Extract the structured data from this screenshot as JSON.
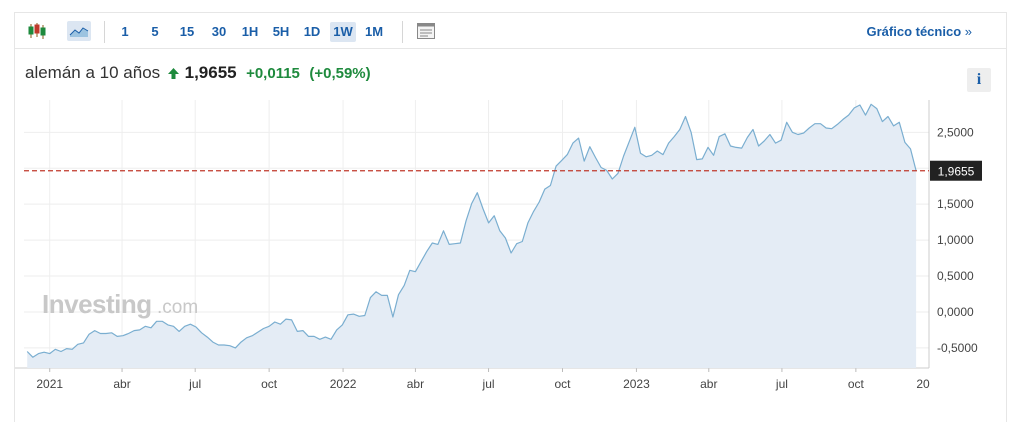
{
  "toolbar": {
    "candles_icon": "candlestick-icon",
    "area_icon": "area-chart-icon",
    "timeframes": [
      "1",
      "5",
      "15",
      "30",
      "1H",
      "5H",
      "1D",
      "1W",
      "1M"
    ],
    "active_timeframe": "1W",
    "layout_icon": "layout-icon",
    "tech_link": "Gráfico técnico",
    "tech_link_arrow": "»"
  },
  "header": {
    "name": "alemán a 10 años",
    "price": "1,9655",
    "change": "+0,0115",
    "change_pct": "(+0,59%)",
    "info_label": "i"
  },
  "watermark": {
    "brand": "Investing",
    "suffix": ".com"
  },
  "colors": {
    "line": "#7aaed0",
    "fill": "#e4ecf5",
    "reference": "#c0392b",
    "positive": "#1e8a3d",
    "link": "#1a5ea8",
    "label_bg": "#222222"
  },
  "chart_data": {
    "type": "area",
    "title": "alemán a 10 años",
    "xlabel": "",
    "ylabel": "",
    "x_ticks": [
      "2021",
      "abr",
      "jul",
      "oct",
      "2022",
      "abr",
      "jul",
      "oct",
      "2023",
      "abr",
      "jul",
      "oct",
      "20"
    ],
    "y_ticks": [
      "2,5000",
      "2,0000",
      "1,5000",
      "1,0000",
      "0,5000",
      "0,0000",
      "-0,5000"
    ],
    "ylim": [
      -0.78,
      2.95
    ],
    "xlim": [
      "2020-11-30",
      "2023-12-31"
    ],
    "last_value_label": "1,9655",
    "reference_line": 1.9655,
    "grid": true,
    "series": [
      {
        "values": [
          [
            "2020-12-04",
            -0.55
          ],
          [
            "2020-12-11",
            -0.63
          ],
          [
            "2020-12-18",
            -0.58
          ],
          [
            "2020-12-25",
            -0.56
          ],
          [
            "2021-01-01",
            -0.58
          ],
          [
            "2021-01-08",
            -0.52
          ],
          [
            "2021-01-15",
            -0.55
          ],
          [
            "2021-01-22",
            -0.51
          ],
          [
            "2021-01-29",
            -0.52
          ],
          [
            "2021-02-05",
            -0.45
          ],
          [
            "2021-02-12",
            -0.43
          ],
          [
            "2021-02-19",
            -0.31
          ],
          [
            "2021-02-26",
            -0.26
          ],
          [
            "2021-03-05",
            -0.3
          ],
          [
            "2021-03-12",
            -0.3
          ],
          [
            "2021-03-19",
            -0.29
          ],
          [
            "2021-03-26",
            -0.34
          ],
          [
            "2021-04-02",
            -0.33
          ],
          [
            "2021-04-09",
            -0.3
          ],
          [
            "2021-04-16",
            -0.26
          ],
          [
            "2021-04-23",
            -0.25
          ],
          [
            "2021-04-30",
            -0.2
          ],
          [
            "2021-05-07",
            -0.22
          ],
          [
            "2021-05-14",
            -0.13
          ],
          [
            "2021-05-21",
            -0.13
          ],
          [
            "2021-05-28",
            -0.18
          ],
          [
            "2021-06-04",
            -0.2
          ],
          [
            "2021-06-11",
            -0.27
          ],
          [
            "2021-06-18",
            -0.2
          ],
          [
            "2021-06-25",
            -0.17
          ],
          [
            "2021-07-02",
            -0.21
          ],
          [
            "2021-07-09",
            -0.29
          ],
          [
            "2021-07-16",
            -0.35
          ],
          [
            "2021-07-23",
            -0.42
          ],
          [
            "2021-07-30",
            -0.46
          ],
          [
            "2021-08-06",
            -0.46
          ],
          [
            "2021-08-13",
            -0.47
          ],
          [
            "2021-08-20",
            -0.5
          ],
          [
            "2021-08-27",
            -0.42
          ],
          [
            "2021-09-03",
            -0.36
          ],
          [
            "2021-09-10",
            -0.33
          ],
          [
            "2021-09-17",
            -0.28
          ],
          [
            "2021-09-24",
            -0.23
          ],
          [
            "2021-10-01",
            -0.2
          ],
          [
            "2021-10-08",
            -0.14
          ],
          [
            "2021-10-15",
            -0.17
          ],
          [
            "2021-10-22",
            -0.1
          ],
          [
            "2021-10-29",
            -0.11
          ],
          [
            "2021-11-05",
            -0.27
          ],
          [
            "2021-11-12",
            -0.26
          ],
          [
            "2021-11-19",
            -0.34
          ],
          [
            "2021-11-26",
            -0.34
          ],
          [
            "2021-12-03",
            -0.38
          ],
          [
            "2021-12-10",
            -0.35
          ],
          [
            "2021-12-17",
            -0.38
          ],
          [
            "2021-12-24",
            -0.25
          ],
          [
            "2021-12-31",
            -0.18
          ],
          [
            "2022-01-07",
            -0.04
          ],
          [
            "2022-01-14",
            -0.03
          ],
          [
            "2022-01-21",
            -0.06
          ],
          [
            "2022-01-28",
            -0.05
          ],
          [
            "2022-02-04",
            0.2
          ],
          [
            "2022-02-11",
            0.28
          ],
          [
            "2022-02-18",
            0.23
          ],
          [
            "2022-02-25",
            0.23
          ],
          [
            "2022-03-04",
            -0.07
          ],
          [
            "2022-03-11",
            0.24
          ],
          [
            "2022-03-18",
            0.37
          ],
          [
            "2022-03-25",
            0.58
          ],
          [
            "2022-04-01",
            0.56
          ],
          [
            "2022-04-08",
            0.7
          ],
          [
            "2022-04-15",
            0.84
          ],
          [
            "2022-04-22",
            0.96
          ],
          [
            "2022-04-29",
            0.94
          ],
          [
            "2022-05-06",
            1.13
          ],
          [
            "2022-05-13",
            0.94
          ],
          [
            "2022-05-20",
            0.95
          ],
          [
            "2022-05-27",
            0.96
          ],
          [
            "2022-06-03",
            1.27
          ],
          [
            "2022-06-10",
            1.51
          ],
          [
            "2022-06-17",
            1.66
          ],
          [
            "2022-06-24",
            1.44
          ],
          [
            "2022-07-01",
            1.24
          ],
          [
            "2022-07-08",
            1.34
          ],
          [
            "2022-07-15",
            1.13
          ],
          [
            "2022-07-22",
            1.03
          ],
          [
            "2022-07-29",
            0.82
          ],
          [
            "2022-08-05",
            0.95
          ],
          [
            "2022-08-12",
            0.98
          ],
          [
            "2022-08-19",
            1.24
          ],
          [
            "2022-08-26",
            1.4
          ],
          [
            "2022-09-02",
            1.53
          ],
          [
            "2022-09-09",
            1.71
          ],
          [
            "2022-09-16",
            1.76
          ],
          [
            "2022-09-23",
            2.03
          ],
          [
            "2022-09-30",
            2.11
          ],
          [
            "2022-10-07",
            2.19
          ],
          [
            "2022-10-14",
            2.35
          ],
          [
            "2022-10-21",
            2.42
          ],
          [
            "2022-10-28",
            2.1
          ],
          [
            "2022-11-04",
            2.3
          ],
          [
            "2022-11-11",
            2.15
          ],
          [
            "2022-11-18",
            2.01
          ],
          [
            "2022-11-25",
            1.97
          ],
          [
            "2022-12-02",
            1.85
          ],
          [
            "2022-12-09",
            1.93
          ],
          [
            "2022-12-16",
            2.17
          ],
          [
            "2022-12-23",
            2.37
          ],
          [
            "2022-12-30",
            2.57
          ],
          [
            "2023-01-06",
            2.21
          ],
          [
            "2023-01-13",
            2.16
          ],
          [
            "2023-01-20",
            2.18
          ],
          [
            "2023-01-27",
            2.24
          ],
          [
            "2023-02-03",
            2.19
          ],
          [
            "2023-02-10",
            2.35
          ],
          [
            "2023-02-17",
            2.44
          ],
          [
            "2023-02-24",
            2.54
          ],
          [
            "2023-03-03",
            2.72
          ],
          [
            "2023-03-10",
            2.5
          ],
          [
            "2023-03-17",
            2.12
          ],
          [
            "2023-03-24",
            2.13
          ],
          [
            "2023-03-31",
            2.29
          ],
          [
            "2023-04-07",
            2.18
          ],
          [
            "2023-04-14",
            2.44
          ],
          [
            "2023-04-21",
            2.48
          ],
          [
            "2023-04-28",
            2.31
          ],
          [
            "2023-05-05",
            2.29
          ],
          [
            "2023-05-12",
            2.28
          ],
          [
            "2023-05-19",
            2.43
          ],
          [
            "2023-05-26",
            2.54
          ],
          [
            "2023-06-02",
            2.31
          ],
          [
            "2023-06-09",
            2.38
          ],
          [
            "2023-06-16",
            2.47
          ],
          [
            "2023-06-23",
            2.35
          ],
          [
            "2023-06-30",
            2.39
          ],
          [
            "2023-07-07",
            2.64
          ],
          [
            "2023-07-14",
            2.5
          ],
          [
            "2023-07-21",
            2.47
          ],
          [
            "2023-07-28",
            2.49
          ],
          [
            "2023-08-04",
            2.56
          ],
          [
            "2023-08-11",
            2.62
          ],
          [
            "2023-08-18",
            2.62
          ],
          [
            "2023-08-25",
            2.56
          ],
          [
            "2023-09-01",
            2.55
          ],
          [
            "2023-09-08",
            2.61
          ],
          [
            "2023-09-15",
            2.68
          ],
          [
            "2023-09-22",
            2.74
          ],
          [
            "2023-09-29",
            2.84
          ],
          [
            "2023-10-06",
            2.88
          ],
          [
            "2023-10-13",
            2.74
          ],
          [
            "2023-10-20",
            2.89
          ],
          [
            "2023-10-27",
            2.83
          ],
          [
            "2023-11-03",
            2.65
          ],
          [
            "2023-11-10",
            2.72
          ],
          [
            "2023-11-17",
            2.59
          ],
          [
            "2023-11-24",
            2.64
          ],
          [
            "2023-12-01",
            2.36
          ],
          [
            "2023-12-08",
            2.27
          ],
          [
            "2023-12-15",
            1.9655
          ]
        ]
      }
    ]
  }
}
